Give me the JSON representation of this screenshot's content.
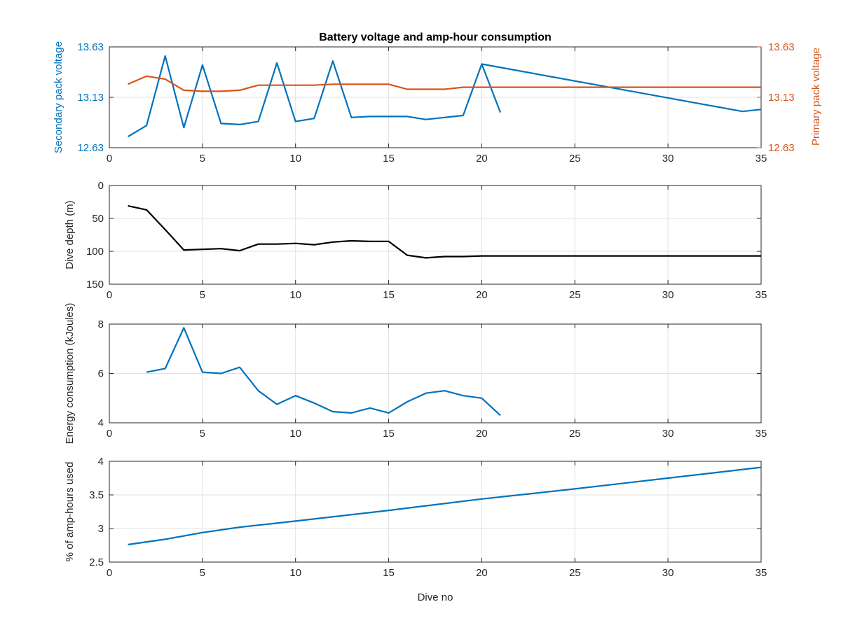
{
  "colors": {
    "secondary": "#0072BD",
    "primary": "#D95319",
    "depth": "#000000",
    "axis": "#262626",
    "grid": "#e1e1e1"
  },
  "chart_data": [
    {
      "type": "line",
      "title": "Battery voltage and amp-hour consumption",
      "xlabel": "",
      "ylabel": "Secondary pack voltage",
      "ylabel_right": "Primary pack voltage",
      "xlim": [
        0,
        35
      ],
      "ylim": [
        12.63,
        13.63
      ],
      "ylim_right": [
        12.63,
        13.63
      ],
      "x_ticks": [
        "0",
        "5",
        "10",
        "15",
        "20",
        "25",
        "30",
        "35"
      ],
      "y_ticks": [
        "12.63",
        "13.13",
        "13.63"
      ],
      "y_ticks_right": [
        "12.63",
        "13.13",
        "13.63"
      ],
      "grid": true,
      "series": [
        {
          "axis": "left",
          "x": [
            1,
            2,
            3,
            4,
            5,
            6,
            7,
            8,
            9,
            10,
            11,
            12,
            13,
            14,
            15,
            16,
            17,
            18,
            19,
            20,
            21
          ],
          "y": [
            12.74,
            12.85,
            13.54,
            12.83,
            13.45,
            12.87,
            12.86,
            12.89,
            13.47,
            12.89,
            12.92,
            13.49,
            12.93,
            12.94,
            12.94,
            12.94,
            12.91,
            12.93,
            12.95,
            13.46,
            12.98
          ]
        },
        {
          "axis": "left",
          "x": [
            20,
            34,
            35
          ],
          "y": [
            13.46,
            12.99,
            13.01
          ]
        },
        {
          "axis": "right",
          "x": [
            1,
            2,
            3,
            4,
            5,
            6,
            7,
            8,
            9,
            10,
            11,
            12,
            13,
            14,
            15,
            16,
            17,
            18,
            19,
            20,
            21,
            22,
            23,
            24,
            25,
            26,
            27,
            28,
            29,
            30,
            31,
            32,
            33,
            34,
            35
          ],
          "y": [
            13.26,
            13.34,
            13.31,
            13.2,
            13.19,
            13.19,
            13.2,
            13.25,
            13.25,
            13.25,
            13.25,
            13.26,
            13.26,
            13.26,
            13.26,
            13.21,
            13.21,
            13.21,
            13.23,
            13.23,
            13.23,
            13.23,
            13.23,
            13.23,
            13.23,
            13.23,
            13.23,
            13.23,
            13.23,
            13.23,
            13.23,
            13.23,
            13.23,
            13.23,
            13.23
          ]
        }
      ]
    },
    {
      "type": "line",
      "title": "",
      "xlabel": "",
      "ylabel": "Dive depth (m)",
      "xlim": [
        0,
        35
      ],
      "ylim": [
        0,
        150
      ],
      "y_reversed": true,
      "x_ticks": [
        "0",
        "5",
        "10",
        "15",
        "20",
        "25",
        "30",
        "35"
      ],
      "y_ticks": [
        "0",
        "50",
        "100",
        "150"
      ],
      "grid": true,
      "series": [
        {
          "x": [
            1,
            2,
            3,
            4,
            5,
            6,
            7,
            8,
            9,
            10,
            11,
            12,
            13,
            14,
            15,
            16,
            17,
            18,
            19,
            20,
            21,
            22,
            23,
            24,
            25,
            26,
            27,
            28,
            29,
            30,
            31,
            32,
            33,
            34,
            35
          ],
          "y": [
            31,
            37,
            67,
            98,
            97,
            96,
            99,
            89,
            89,
            88,
            90,
            86,
            84,
            85,
            85,
            106,
            110,
            108,
            108,
            107,
            107,
            107,
            107,
            107,
            107,
            107,
            107,
            107,
            107,
            107,
            107,
            107,
            107,
            107,
            107
          ]
        }
      ]
    },
    {
      "type": "line",
      "title": "",
      "xlabel": "",
      "ylabel": "Energy consumption (kJoules)",
      "xlim": [
        0,
        35
      ],
      "ylim": [
        4,
        8
      ],
      "x_ticks": [
        "0",
        "5",
        "10",
        "15",
        "20",
        "25",
        "30",
        "35"
      ],
      "y_ticks": [
        "4",
        "6",
        "8"
      ],
      "grid": true,
      "series": [
        {
          "x": [
            2,
            3,
            4,
            5,
            6,
            7,
            8,
            9,
            10,
            11,
            12,
            13,
            14,
            15,
            16,
            17,
            18,
            19,
            20,
            21
          ],
          "y": [
            6.05,
            6.2,
            7.85,
            6.05,
            6.0,
            6.25,
            5.3,
            4.75,
            5.1,
            4.8,
            4.45,
            4.4,
            4.6,
            4.4,
            4.85,
            5.2,
            5.3,
            5.1,
            5.0,
            4.3
          ]
        }
      ]
    },
    {
      "type": "line",
      "title": "",
      "xlabel": "Dive no",
      "ylabel": "% of amp-hours used",
      "xlim": [
        0,
        35
      ],
      "ylim": [
        2.5,
        4
      ],
      "x_ticks": [
        "0",
        "5",
        "10",
        "15",
        "20",
        "25",
        "30",
        "35"
      ],
      "y_ticks": [
        "2.5",
        "3",
        "3.5",
        "4"
      ],
      "grid": true,
      "series": [
        {
          "x": [
            1,
            3,
            5,
            7,
            8,
            10,
            15,
            20,
            25,
            30,
            35
          ],
          "y": [
            2.76,
            2.84,
            2.94,
            3.02,
            3.05,
            3.11,
            3.27,
            3.44,
            3.59,
            3.75,
            3.91
          ]
        }
      ]
    }
  ]
}
